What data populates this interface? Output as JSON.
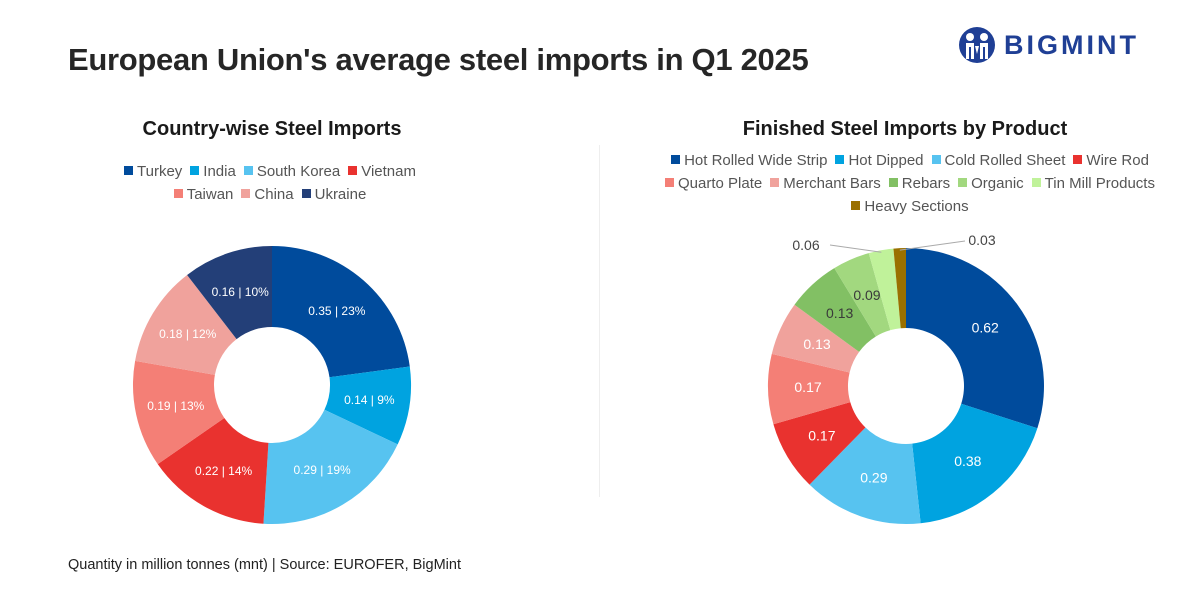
{
  "header": {
    "title": "European Union's average steel imports in Q1 2025",
    "logo_text": "BIGMINT",
    "logo_color": "#1f3f95"
  },
  "footer": {
    "note": "Quantity in million tonnes (mnt)  | Source: EUROFER, BigMint"
  },
  "chart_data": [
    {
      "type": "pie",
      "donut": true,
      "title": "Country-wise Steel Imports",
      "legend_position": "top",
      "unit": "mnt",
      "categories": [
        "Turkey",
        "India",
        "South Korea",
        "Vietnam",
        "Taiwan",
        "China",
        "Ukraine"
      ],
      "values": [
        0.35,
        0.14,
        0.29,
        0.22,
        0.19,
        0.18,
        0.16
      ],
      "percents": [
        23,
        9,
        19,
        14,
        13,
        12,
        10
      ],
      "labels": [
        "0.35 | 23%",
        "0.14 | 9%",
        "0.29 | 19%",
        "0.22 | 14%",
        "0.19 | 13%",
        "0.18 | 12%",
        "0.16 | 10%"
      ],
      "colors": [
        "#004b9c",
        "#00a3e0",
        "#57c3f0",
        "#e9322f",
        "#f47f76",
        "#f0a29c",
        "#233f78"
      ]
    },
    {
      "type": "pie",
      "donut": true,
      "title": "Finished Steel Imports by Product",
      "legend_position": "top",
      "unit": "mnt",
      "categories": [
        "Hot Rolled Wide Strip",
        "Hot Dipped",
        "Cold Rolled Sheet",
        "Wire Rod",
        "Quarto Plate",
        "Merchant Bars",
        "Rebars",
        "Organic",
        "Tin Mill Products",
        "Heavy Sections"
      ],
      "values": [
        0.62,
        0.38,
        0.29,
        0.17,
        0.17,
        0.13,
        0.13,
        0.09,
        0.06,
        0.03
      ],
      "labels": [
        "0.62",
        "0.38",
        "0.29",
        "0.17",
        "0.17",
        "0.13",
        "0.13",
        "0.09",
        "0.06",
        "0.03"
      ],
      "colors": [
        "#004b9c",
        "#00a3e0",
        "#57c3f0",
        "#e9322f",
        "#f47f76",
        "#f0a29c",
        "#82c064",
        "#a2d87f",
        "#c0f29a",
        "#9a7000"
      ]
    }
  ]
}
